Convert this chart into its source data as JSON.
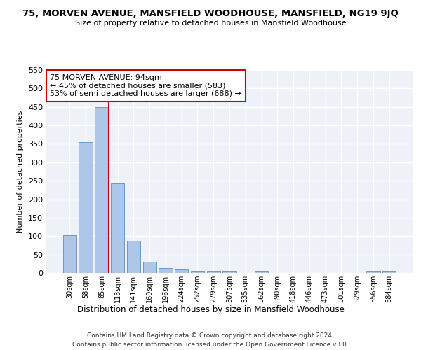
{
  "title": "75, MORVEN AVENUE, MANSFIELD WOODHOUSE, MANSFIELD, NG19 9JQ",
  "subtitle": "Size of property relative to detached houses in Mansfield Woodhouse",
  "xlabel": "Distribution of detached houses by size in Mansfield Woodhouse",
  "ylabel": "Number of detached properties",
  "bar_labels": [
    "30sqm",
    "58sqm",
    "85sqm",
    "113sqm",
    "141sqm",
    "169sqm",
    "196sqm",
    "224sqm",
    "252sqm",
    "279sqm",
    "307sqm",
    "335sqm",
    "362sqm",
    "390sqm",
    "418sqm",
    "446sqm",
    "473sqm",
    "501sqm",
    "529sqm",
    "556sqm",
    "584sqm"
  ],
  "bar_values": [
    103,
    355,
    449,
    242,
    88,
    30,
    13,
    9,
    5,
    5,
    5,
    0,
    5,
    0,
    0,
    0,
    0,
    0,
    0,
    5,
    5
  ],
  "bar_color": "#aec6e8",
  "bar_edge_color": "#5a8fc0",
  "vline_x_index": 2,
  "vline_color": "#cc0000",
  "annotation_text": "75 MORVEN AVENUE: 94sqm\n← 45% of detached houses are smaller (583)\n53% of semi-detached houses are larger (688) →",
  "annotation_box_color": "#ffffff",
  "annotation_box_edge": "#cc0000",
  "ylim": [
    0,
    550
  ],
  "yticks": [
    0,
    50,
    100,
    150,
    200,
    250,
    300,
    350,
    400,
    450,
    500,
    550
  ],
  "bg_color": "#eef2f8",
  "grid_color": "#ffffff",
  "footer1": "Contains HM Land Registry data © Crown copyright and database right 2024.",
  "footer2": "Contains public sector information licensed under the Open Government Licence v3.0."
}
